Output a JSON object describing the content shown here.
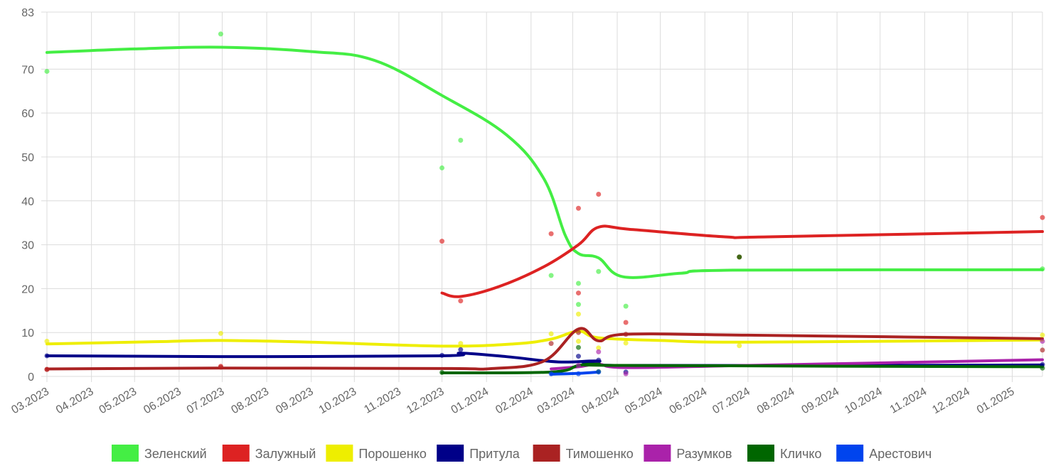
{
  "chart_data": {
    "type": "line",
    "title": "",
    "xlabel": "",
    "ylabel": "",
    "x_ticks": [
      "03.2023",
      "04.2023",
      "05.2023",
      "06.2023",
      "07.2023",
      "08.2023",
      "09.2023",
      "10.2023",
      "11.2023",
      "12.2023",
      "01.2024",
      "02.2024",
      "03.2024",
      "04.2024",
      "05.2024",
      "06.2024",
      "07.2024",
      "08.2024",
      "09.2024",
      "10.2024",
      "11.2024",
      "12.2024",
      "01.2025"
    ],
    "x_range": [
      "2023-03-01",
      "2025-01-22"
    ],
    "y_ticks": [
      0,
      10,
      20,
      30,
      40,
      50,
      60,
      70,
      83
    ],
    "ylim": [
      0,
      83
    ],
    "grid": true,
    "legend_position": "bottom",
    "series": [
      {
        "name": "Зеленский",
        "color": "#44ee44",
        "line": [
          [
            "2023-03-01",
            73.8
          ],
          [
            "2023-05-01",
            74.6
          ],
          [
            "2023-06-30",
            75.0
          ],
          [
            "2023-09-01",
            74.0
          ],
          [
            "2023-10-15",
            72.0
          ],
          [
            "2023-12-01",
            64.0
          ],
          [
            "2024-01-15",
            55.0
          ],
          [
            "2024-02-10",
            45.0
          ],
          [
            "2024-02-25",
            32.0
          ],
          [
            "2024-03-05",
            28.0
          ],
          [
            "2024-03-19",
            27.0
          ],
          [
            "2024-04-05",
            22.7
          ],
          [
            "2024-05-15",
            23.5
          ],
          [
            "2024-06-20",
            24.2
          ],
          [
            "2025-01-22",
            24.3
          ]
        ],
        "points": [
          [
            "2023-03-01",
            69.5
          ],
          [
            "2023-06-30",
            78.0
          ],
          [
            "2023-12-01",
            47.5
          ],
          [
            "2023-12-14",
            53.8
          ],
          [
            "2024-02-15",
            23.0
          ],
          [
            "2024-03-05",
            21.2
          ],
          [
            "2024-03-05",
            16.4
          ],
          [
            "2024-03-19",
            23.9
          ],
          [
            "2024-04-07",
            16.0
          ],
          [
            "2024-06-25",
            27.2
          ],
          [
            "2025-01-22",
            24.5
          ]
        ]
      },
      {
        "name": "Залужный",
        "color": "#dd2222",
        "line": [
          [
            "2023-12-01",
            19.0
          ],
          [
            "2023-12-14",
            18.2
          ],
          [
            "2024-01-10",
            20.5
          ],
          [
            "2024-02-10",
            25.0
          ],
          [
            "2024-03-05",
            30.0
          ],
          [
            "2024-03-19",
            34.0
          ],
          [
            "2024-04-10",
            33.5
          ],
          [
            "2024-06-15",
            31.8
          ],
          [
            "2024-07-15",
            31.8
          ],
          [
            "2025-01-22",
            33.0
          ]
        ],
        "points": [
          [
            "2023-03-01",
            1.6
          ],
          [
            "2023-06-30",
            2.3
          ],
          [
            "2023-12-01",
            30.8
          ],
          [
            "2023-12-14",
            17.2
          ],
          [
            "2024-02-15",
            32.5
          ],
          [
            "2024-03-05",
            38.3
          ],
          [
            "2024-03-05",
            19.0
          ],
          [
            "2024-03-19",
            41.5
          ],
          [
            "2024-04-07",
            12.3
          ],
          [
            "2024-06-25",
            27.2
          ],
          [
            "2025-01-22",
            36.2
          ]
        ]
      },
      {
        "name": "Порошенко",
        "color": "#eeee00",
        "line": [
          [
            "2023-03-01",
            7.4
          ],
          [
            "2023-05-15",
            7.9
          ],
          [
            "2023-06-30",
            8.2
          ],
          [
            "2023-09-01",
            7.8
          ],
          [
            "2023-12-01",
            6.9
          ],
          [
            "2024-01-20",
            7.4
          ],
          [
            "2024-02-15",
            8.5
          ],
          [
            "2024-03-05",
            10.3
          ],
          [
            "2024-03-19",
            8.8
          ],
          [
            "2024-05-01",
            8.2
          ],
          [
            "2024-07-01",
            7.8
          ],
          [
            "2025-01-22",
            8.3
          ]
        ],
        "points": [
          [
            "2023-03-01",
            8.0
          ],
          [
            "2023-06-30",
            9.8
          ],
          [
            "2023-12-14",
            7.5
          ],
          [
            "2024-02-15",
            9.7
          ],
          [
            "2024-03-05",
            14.2
          ],
          [
            "2024-03-05",
            8.0
          ],
          [
            "2024-03-19",
            6.5
          ],
          [
            "2024-04-07",
            7.6
          ],
          [
            "2024-06-25",
            7.0
          ],
          [
            "2025-01-22",
            9.4
          ]
        ]
      },
      {
        "name": "Притула",
        "color": "#000088",
        "line": [
          [
            "2023-03-01",
            4.7
          ],
          [
            "2023-06-30",
            4.5
          ],
          [
            "2023-12-01",
            4.7
          ],
          [
            "2023-12-14",
            5.3
          ],
          [
            "2024-01-15",
            4.5
          ],
          [
            "2024-02-20",
            3.3
          ],
          [
            "2024-03-19",
            3.5
          ],
          [
            "2024-04-05",
            2.5
          ],
          [
            "2025-01-22",
            2.6
          ]
        ],
        "points": [
          [
            "2023-03-01",
            4.7
          ],
          [
            "2023-12-01",
            4.8
          ],
          [
            "2023-12-14",
            6.1
          ],
          [
            "2024-03-05",
            4.6
          ],
          [
            "2024-03-19",
            3.7
          ],
          [
            "2024-04-07",
            1.0
          ],
          [
            "2025-01-22",
            2.7
          ]
        ]
      },
      {
        "name": "Тимошенко",
        "color": "#aa2222",
        "line": [
          [
            "2023-03-01",
            1.7
          ],
          [
            "2023-06-30",
            1.9
          ],
          [
            "2023-12-01",
            1.8
          ],
          [
            "2024-01-05",
            1.8
          ],
          [
            "2024-02-10",
            3.5
          ],
          [
            "2024-03-05",
            10.8
          ],
          [
            "2024-03-19",
            8.1
          ],
          [
            "2024-04-07",
            9.6
          ],
          [
            "2024-07-01",
            9.4
          ],
          [
            "2025-01-22",
            8.6
          ]
        ],
        "points": [
          [
            "2023-03-01",
            1.6
          ],
          [
            "2023-06-30",
            2.1
          ],
          [
            "2024-02-15",
            7.5
          ],
          [
            "2024-03-05",
            10.0
          ],
          [
            "2024-04-07",
            9.6
          ],
          [
            "2025-01-22",
            6.0
          ]
        ]
      },
      {
        "name": "Разумков",
        "color": "#aa22aa",
        "line": [
          [
            "2024-02-15",
            1.7
          ],
          [
            "2024-03-05",
            2.2
          ],
          [
            "2024-03-19",
            2.8
          ],
          [
            "2024-04-07",
            2.0
          ],
          [
            "2024-07-01",
            2.5
          ],
          [
            "2025-01-22",
            3.8
          ]
        ],
        "points": [
          [
            "2024-03-05",
            2.5
          ],
          [
            "2024-03-19",
            5.6
          ],
          [
            "2024-04-07",
            0.6
          ],
          [
            "2025-01-22",
            8.0
          ]
        ]
      },
      {
        "name": "Кличко",
        "color": "#006600",
        "line": [
          [
            "2023-12-01",
            0.8
          ],
          [
            "2024-02-15",
            1.0
          ],
          [
            "2024-03-05",
            2.5
          ],
          [
            "2024-03-19",
            2.8
          ],
          [
            "2024-04-07",
            2.5
          ],
          [
            "2025-01-22",
            2.2
          ]
        ],
        "points": [
          [
            "2023-12-01",
            0.9
          ],
          [
            "2024-03-05",
            6.6
          ],
          [
            "2024-03-19",
            1.1
          ],
          [
            "2024-06-25",
            27.2
          ],
          [
            "2025-01-22",
            1.9
          ]
        ]
      },
      {
        "name": "Арестович",
        "color": "#0044ee",
        "line": [
          [
            "2024-02-15",
            0.5
          ],
          [
            "2024-03-05",
            0.7
          ],
          [
            "2024-03-19",
            1.0
          ]
        ],
        "points": [
          [
            "2024-02-15",
            0.6
          ],
          [
            "2024-03-05",
            0.6
          ],
          [
            "2024-03-19",
            1.0
          ]
        ]
      }
    ]
  }
}
